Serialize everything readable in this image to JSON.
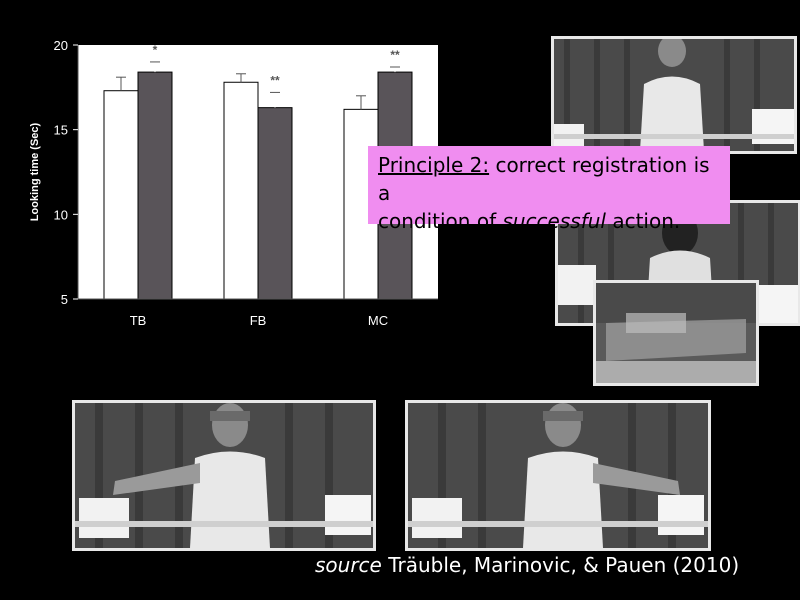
{
  "chart_data": {
    "type": "bar",
    "ylabel": "Looking time (Sec)",
    "ylim": [
      5,
      20
    ],
    "yticks": [
      5,
      10,
      15,
      20
    ],
    "categories": [
      "TB",
      "FB",
      "MC"
    ],
    "series": [
      {
        "values": [
          17.3,
          17.8,
          16.2
        ],
        "errors": [
          0.8,
          0.5,
          0.8
        ],
        "color": "#ffffff"
      },
      {
        "values": [
          18.4,
          16.3,
          18.4
        ],
        "errors": [
          0.6,
          0.9,
          0.3
        ],
        "color": "#595459"
      }
    ],
    "significance": [
      "*",
      "**",
      "**"
    ],
    "grid": false
  },
  "principle": {
    "lead": "Principle 2:",
    "text1": " correct registration is a",
    "text2a": "condition of ",
    "emph": "successful",
    "text2b": " action."
  },
  "source": {
    "lead": "source",
    "text": " Träuble,  Marinovic, & Pauen (2010)"
  },
  "colors": {
    "background": "#000000",
    "highlight": "#f08df0"
  }
}
